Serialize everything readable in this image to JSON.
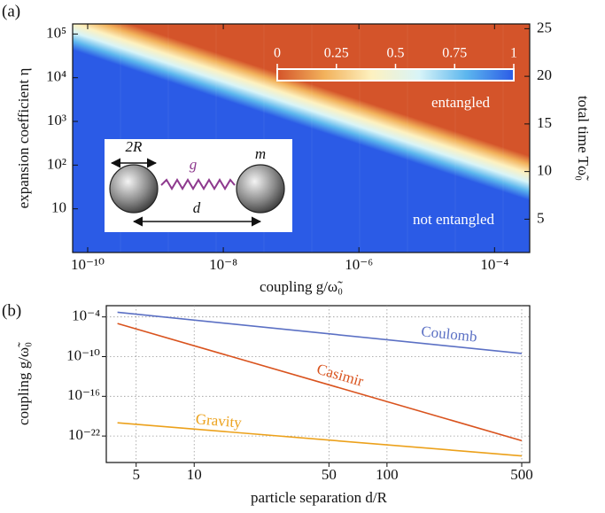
{
  "chart_data": [
    {
      "type": "heatmap",
      "panel_label": "(a)",
      "xlabel": "coupling g/ω̃₀",
      "ylabel": "expansion coefficient η",
      "y2label": "total time Tω̃₀",
      "xscale": "log",
      "yscale": "log",
      "xlim": [
        6e-11,
        0.00033
      ],
      "ylim": [
        1,
        170000
      ],
      "xticks": [
        {
          "value": 1e-10,
          "label": "10⁻¹⁰"
        },
        {
          "value": 1e-08,
          "label": "10⁻⁸"
        },
        {
          "value": 1e-06,
          "label": "10⁻⁶"
        },
        {
          "value": 0.0001,
          "label": "10⁻⁴"
        }
      ],
      "yticks": [
        10,
        {
          "value": 100,
          "label": "10²"
        },
        {
          "value": 1000,
          "label": "10³"
        },
        {
          "value": 10000,
          "label": "10⁴"
        },
        {
          "value": 100000,
          "label": "10⁵"
        }
      ],
      "y2lim": [
        1.5,
        25.5
      ],
      "y2ticks": [
        5,
        10,
        15,
        20,
        25
      ],
      "colormap": [
        "#d4542a",
        "#f2b25c",
        "#fdf1c0",
        "#d8f4f8",
        "#5cb6ee",
        "#2b5be6"
      ],
      "colorbar_ticks": [
        0,
        0.25,
        0.5,
        0.75,
        1
      ],
      "contour": {
        "x": [
          6e-11,
          0.00033
        ],
        "y": [
          140000,
          50
        ]
      },
      "annotations": [
        "entangled",
        "not entangled"
      ],
      "inset": {
        "labels": [
          "2R",
          "g",
          "m",
          "d"
        ]
      }
    },
    {
      "type": "line",
      "panel_label": "(b)",
      "xlabel": "particle separation d/R",
      "ylabel": "coupling g/ω̃₀",
      "xscale": "log",
      "yscale": "log",
      "xlim": [
        3.5,
        550
      ],
      "ylim": [
        1e-26,
        0.005
      ],
      "xticks": [
        5,
        10,
        50,
        100,
        500
      ],
      "yticks": [
        {
          "value": 0.0001,
          "label": "10⁻⁴"
        },
        {
          "value": 1e-10,
          "label": "10⁻¹⁰"
        },
        {
          "value": 1e-16,
          "label": "10⁻¹⁶"
        },
        {
          "value": 1e-22,
          "label": "10⁻²²"
        }
      ],
      "grid": true,
      "x": [
        4,
        500
      ],
      "series": [
        {
          "name": "Coulomb",
          "color": "#5b70c4",
          "values": [
            0.0005,
            3e-10
          ]
        },
        {
          "name": "Casimir",
          "color": "#d9531e",
          "values": [
            1e-05,
            2e-23
          ]
        },
        {
          "name": "Gravity",
          "color": "#eca11b",
          "values": [
            1e-20,
            1e-25
          ]
        }
      ]
    }
  ]
}
